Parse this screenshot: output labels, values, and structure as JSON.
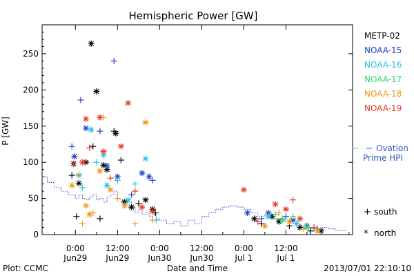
{
  "chart_data": {
    "type": "scatter",
    "title": "Hemispheric Power [GW]",
    "ylabel": "P [GW]",
    "xlabel": "Date and Time",
    "ylim": [
      0,
      290
    ],
    "xlim_hours": [
      -9.5,
      79
    ],
    "yticks": [
      0,
      50,
      100,
      150,
      200,
      250
    ],
    "xticks": [
      {
        "hour": 0,
        "top": "0:00",
        "bottom": "Jun29"
      },
      {
        "hour": 12,
        "top": "12:00",
        "bottom": "Jun29"
      },
      {
        "hour": 24,
        "top": "0:00",
        "bottom": "Jun30"
      },
      {
        "hour": 36,
        "top": "12:00",
        "bottom": "Jun30"
      },
      {
        "hour": 48,
        "top": "0:00",
        "bottom": "Jul 1"
      },
      {
        "hour": 60,
        "top": "12:00",
        "bottom": "Jul 1"
      }
    ],
    "legend_position": "right",
    "series": [
      {
        "name": "METP-02",
        "color": "#000000",
        "points": [
          {
            "h": -1,
            "v": 82,
            "m": "south"
          },
          {
            "h": -0.5,
            "v": 98,
            "m": "north"
          },
          {
            "h": 0.3,
            "v": 25,
            "m": "south"
          },
          {
            "h": 1,
            "v": 71,
            "m": "north"
          },
          {
            "h": 3,
            "v": 100,
            "m": "north"
          },
          {
            "h": 4.5,
            "v": 264,
            "m": "north"
          },
          {
            "h": 5,
            "v": 122,
            "m": "south"
          },
          {
            "h": 6,
            "v": 198,
            "m": "north"
          },
          {
            "h": 7,
            "v": 22,
            "m": "south"
          },
          {
            "h": 8,
            "v": 96,
            "m": "north"
          },
          {
            "h": 9,
            "v": 90,
            "m": "north"
          },
          {
            "h": 11,
            "v": 143,
            "m": "south"
          },
          {
            "h": 11.5,
            "v": 140,
            "m": "north"
          },
          {
            "h": 13,
            "v": 103,
            "m": "south"
          },
          {
            "h": 14,
            "v": 45,
            "m": "north"
          },
          {
            "h": 16,
            "v": 38,
            "m": "north"
          },
          {
            "h": 18,
            "v": 43,
            "m": "south"
          },
          {
            "h": 20,
            "v": 48,
            "m": "north"
          },
          {
            "h": 22,
            "v": 35,
            "m": "north"
          },
          {
            "h": 22.8,
            "v": 30,
            "m": "south"
          },
          {
            "h": 51,
            "v": 22,
            "m": "north"
          },
          {
            "h": 53,
            "v": 15,
            "m": "south"
          },
          {
            "h": 56,
            "v": 25,
            "m": "north"
          },
          {
            "h": 58,
            "v": 18,
            "m": "north"
          },
          {
            "h": 61,
            "v": 12,
            "m": "south"
          },
          {
            "h": 64,
            "v": 10,
            "m": "north"
          },
          {
            "h": 67,
            "v": 5,
            "m": "south"
          },
          {
            "h": 70,
            "v": 5,
            "m": "north"
          }
        ]
      },
      {
        "name": "NOAA-15",
        "color": "#1f3fcf",
        "points": [
          {
            "h": -1,
            "v": 122,
            "m": "south"
          },
          {
            "h": -0.3,
            "v": 108,
            "m": "north"
          },
          {
            "h": 1.5,
            "v": 186,
            "m": "south"
          },
          {
            "h": 3,
            "v": 147,
            "m": "north"
          },
          {
            "h": 7,
            "v": 143,
            "m": "south"
          },
          {
            "h": 9,
            "v": 95,
            "m": "north"
          },
          {
            "h": 11,
            "v": 240,
            "m": "south"
          },
          {
            "h": 12,
            "v": 80,
            "m": "north"
          },
          {
            "h": 16,
            "v": 55,
            "m": "south"
          },
          {
            "h": 19,
            "v": 85,
            "m": "north"
          },
          {
            "h": 21,
            "v": 80,
            "m": "north"
          },
          {
            "h": 22,
            "v": 75,
            "m": "south"
          },
          {
            "h": 49,
            "v": 30,
            "m": "north"
          },
          {
            "h": 53,
            "v": 22,
            "m": "south"
          },
          {
            "h": 55,
            "v": 30,
            "m": "north"
          },
          {
            "h": 60,
            "v": 25,
            "m": "south"
          },
          {
            "h": 62,
            "v": 20,
            "m": "north"
          },
          {
            "h": 66,
            "v": 12,
            "m": "north"
          },
          {
            "h": 69,
            "v": 8,
            "m": "south"
          }
        ]
      },
      {
        "name": "NOAA-16",
        "color": "#22c3e8",
        "points": [
          {
            "h": 1,
            "v": 82,
            "m": "north"
          },
          {
            "h": 2,
            "v": 65,
            "m": "south"
          },
          {
            "h": 4.5,
            "v": 145,
            "m": "north"
          },
          {
            "h": 6,
            "v": 100,
            "m": "south"
          },
          {
            "h": 8,
            "v": 110,
            "m": "north"
          },
          {
            "h": 9,
            "v": 68,
            "m": "north"
          },
          {
            "h": 12,
            "v": 75,
            "m": "south"
          },
          {
            "h": 15,
            "v": 48,
            "m": "north"
          },
          {
            "h": 17,
            "v": 70,
            "m": "south"
          },
          {
            "h": 20,
            "v": 105,
            "m": "north"
          },
          {
            "h": 23,
            "v": 20,
            "m": "south"
          },
          {
            "h": 55,
            "v": 25,
            "m": "north"
          },
          {
            "h": 59,
            "v": 22,
            "m": "south"
          },
          {
            "h": 63,
            "v": 15,
            "m": "north"
          },
          {
            "h": 68,
            "v": 8,
            "m": "south"
          }
        ]
      },
      {
        "name": "NOAA-17",
        "color": "#2fd86b",
        "points": [
          {
            "h": 57,
            "v": 28,
            "m": "south"
          },
          {
            "h": 59,
            "v": 20,
            "m": "north"
          },
          {
            "h": 62,
            "v": 25,
            "m": "south"
          },
          {
            "h": 66,
            "v": 10,
            "m": "north"
          }
        ]
      },
      {
        "name": "NOAA-18",
        "color": "#f0961e",
        "points": [
          {
            "h": -1,
            "v": 68,
            "m": "north"
          },
          {
            "h": 1,
            "v": 83,
            "m": "south"
          },
          {
            "h": 2,
            "v": 15,
            "m": "south"
          },
          {
            "h": 3,
            "v": 40,
            "m": "north"
          },
          {
            "h": 4,
            "v": 28,
            "m": "north"
          },
          {
            "h": 5,
            "v": 30,
            "m": "south"
          },
          {
            "h": 7,
            "v": 88,
            "m": "north"
          },
          {
            "h": 8,
            "v": 162,
            "m": "south"
          },
          {
            "h": 10,
            "v": 62,
            "m": "north"
          },
          {
            "h": 12,
            "v": 50,
            "m": "south"
          },
          {
            "h": 14,
            "v": 40,
            "m": "north"
          },
          {
            "h": 17,
            "v": 15,
            "m": "south"
          },
          {
            "h": 20,
            "v": 155,
            "m": "north"
          },
          {
            "h": 22,
            "v": 20,
            "m": "south"
          },
          {
            "h": 54,
            "v": 12,
            "m": "north"
          },
          {
            "h": 58,
            "v": 30,
            "m": "south"
          },
          {
            "h": 61,
            "v": 18,
            "m": "north"
          },
          {
            "h": 65,
            "v": 8,
            "m": "south"
          },
          {
            "h": 69,
            "v": 5,
            "m": "north"
          }
        ]
      },
      {
        "name": "NOAA-19",
        "color": "#e8381e",
        "points": [
          {
            "h": -0.5,
            "v": 98,
            "m": "south"
          },
          {
            "h": 2,
            "v": 100,
            "m": "north"
          },
          {
            "h": 3,
            "v": 160,
            "m": "north"
          },
          {
            "h": 4,
            "v": 120,
            "m": "south"
          },
          {
            "h": 7,
            "v": 162,
            "m": "north"
          },
          {
            "h": 8,
            "v": 115,
            "m": "north"
          },
          {
            "h": 10,
            "v": 78,
            "m": "south"
          },
          {
            "h": 13,
            "v": 122,
            "m": "north"
          },
          {
            "h": 15,
            "v": 182,
            "m": "north"
          },
          {
            "h": 17,
            "v": 60,
            "m": "south"
          },
          {
            "h": 19,
            "v": 38,
            "m": "north"
          },
          {
            "h": 22,
            "v": 32,
            "m": "north"
          },
          {
            "h": 48,
            "v": 62,
            "m": "north"
          },
          {
            "h": 52,
            "v": 18,
            "m": "south"
          },
          {
            "h": 57,
            "v": 42,
            "m": "north"
          },
          {
            "h": 60,
            "v": 35,
            "m": "north"
          },
          {
            "h": 62,
            "v": 48,
            "m": "south"
          },
          {
            "h": 64,
            "v": 22,
            "m": "north"
          },
          {
            "h": 68,
            "v": 10,
            "m": "south"
          }
        ]
      }
    ],
    "ovation": {
      "name": "Ovation Prime HPI",
      "color": "#3355cc",
      "hours": [
        -9.5,
        -8,
        -6,
        -4,
        -2,
        0,
        1,
        2,
        3,
        4,
        5,
        6,
        7,
        8,
        9,
        10,
        11,
        12,
        13,
        14,
        15,
        16,
        17,
        18,
        19,
        20,
        21,
        22,
        23,
        24,
        26,
        28,
        30,
        32,
        34,
        36,
        38,
        40,
        42,
        44,
        46,
        48,
        50,
        52,
        54,
        56,
        58,
        60,
        62,
        64,
        66,
        68,
        70,
        72,
        74,
        77
      ],
      "values": [
        80,
        72,
        65,
        60,
        55,
        50,
        55,
        50,
        48,
        52,
        55,
        48,
        50,
        45,
        52,
        55,
        60,
        50,
        45,
        40,
        45,
        38,
        30,
        35,
        28,
        30,
        25,
        28,
        22,
        20,
        15,
        18,
        12,
        20,
        15,
        25,
        30,
        35,
        38,
        40,
        38,
        35,
        30,
        25,
        28,
        22,
        20,
        18,
        15,
        12,
        10,
        8,
        10,
        8,
        6,
        5
      ]
    },
    "markers_legend": {
      "south_symbol": "+",
      "south_label": "south",
      "north_symbol": "*",
      "north_label": "north"
    },
    "ovation_legend": {
      "line1": "Ovation",
      "line2": "Prime HPI"
    }
  },
  "footer": {
    "plot_credit": "Plot: CCMC",
    "timestamp": "2013/07/01 22:10:10"
  }
}
